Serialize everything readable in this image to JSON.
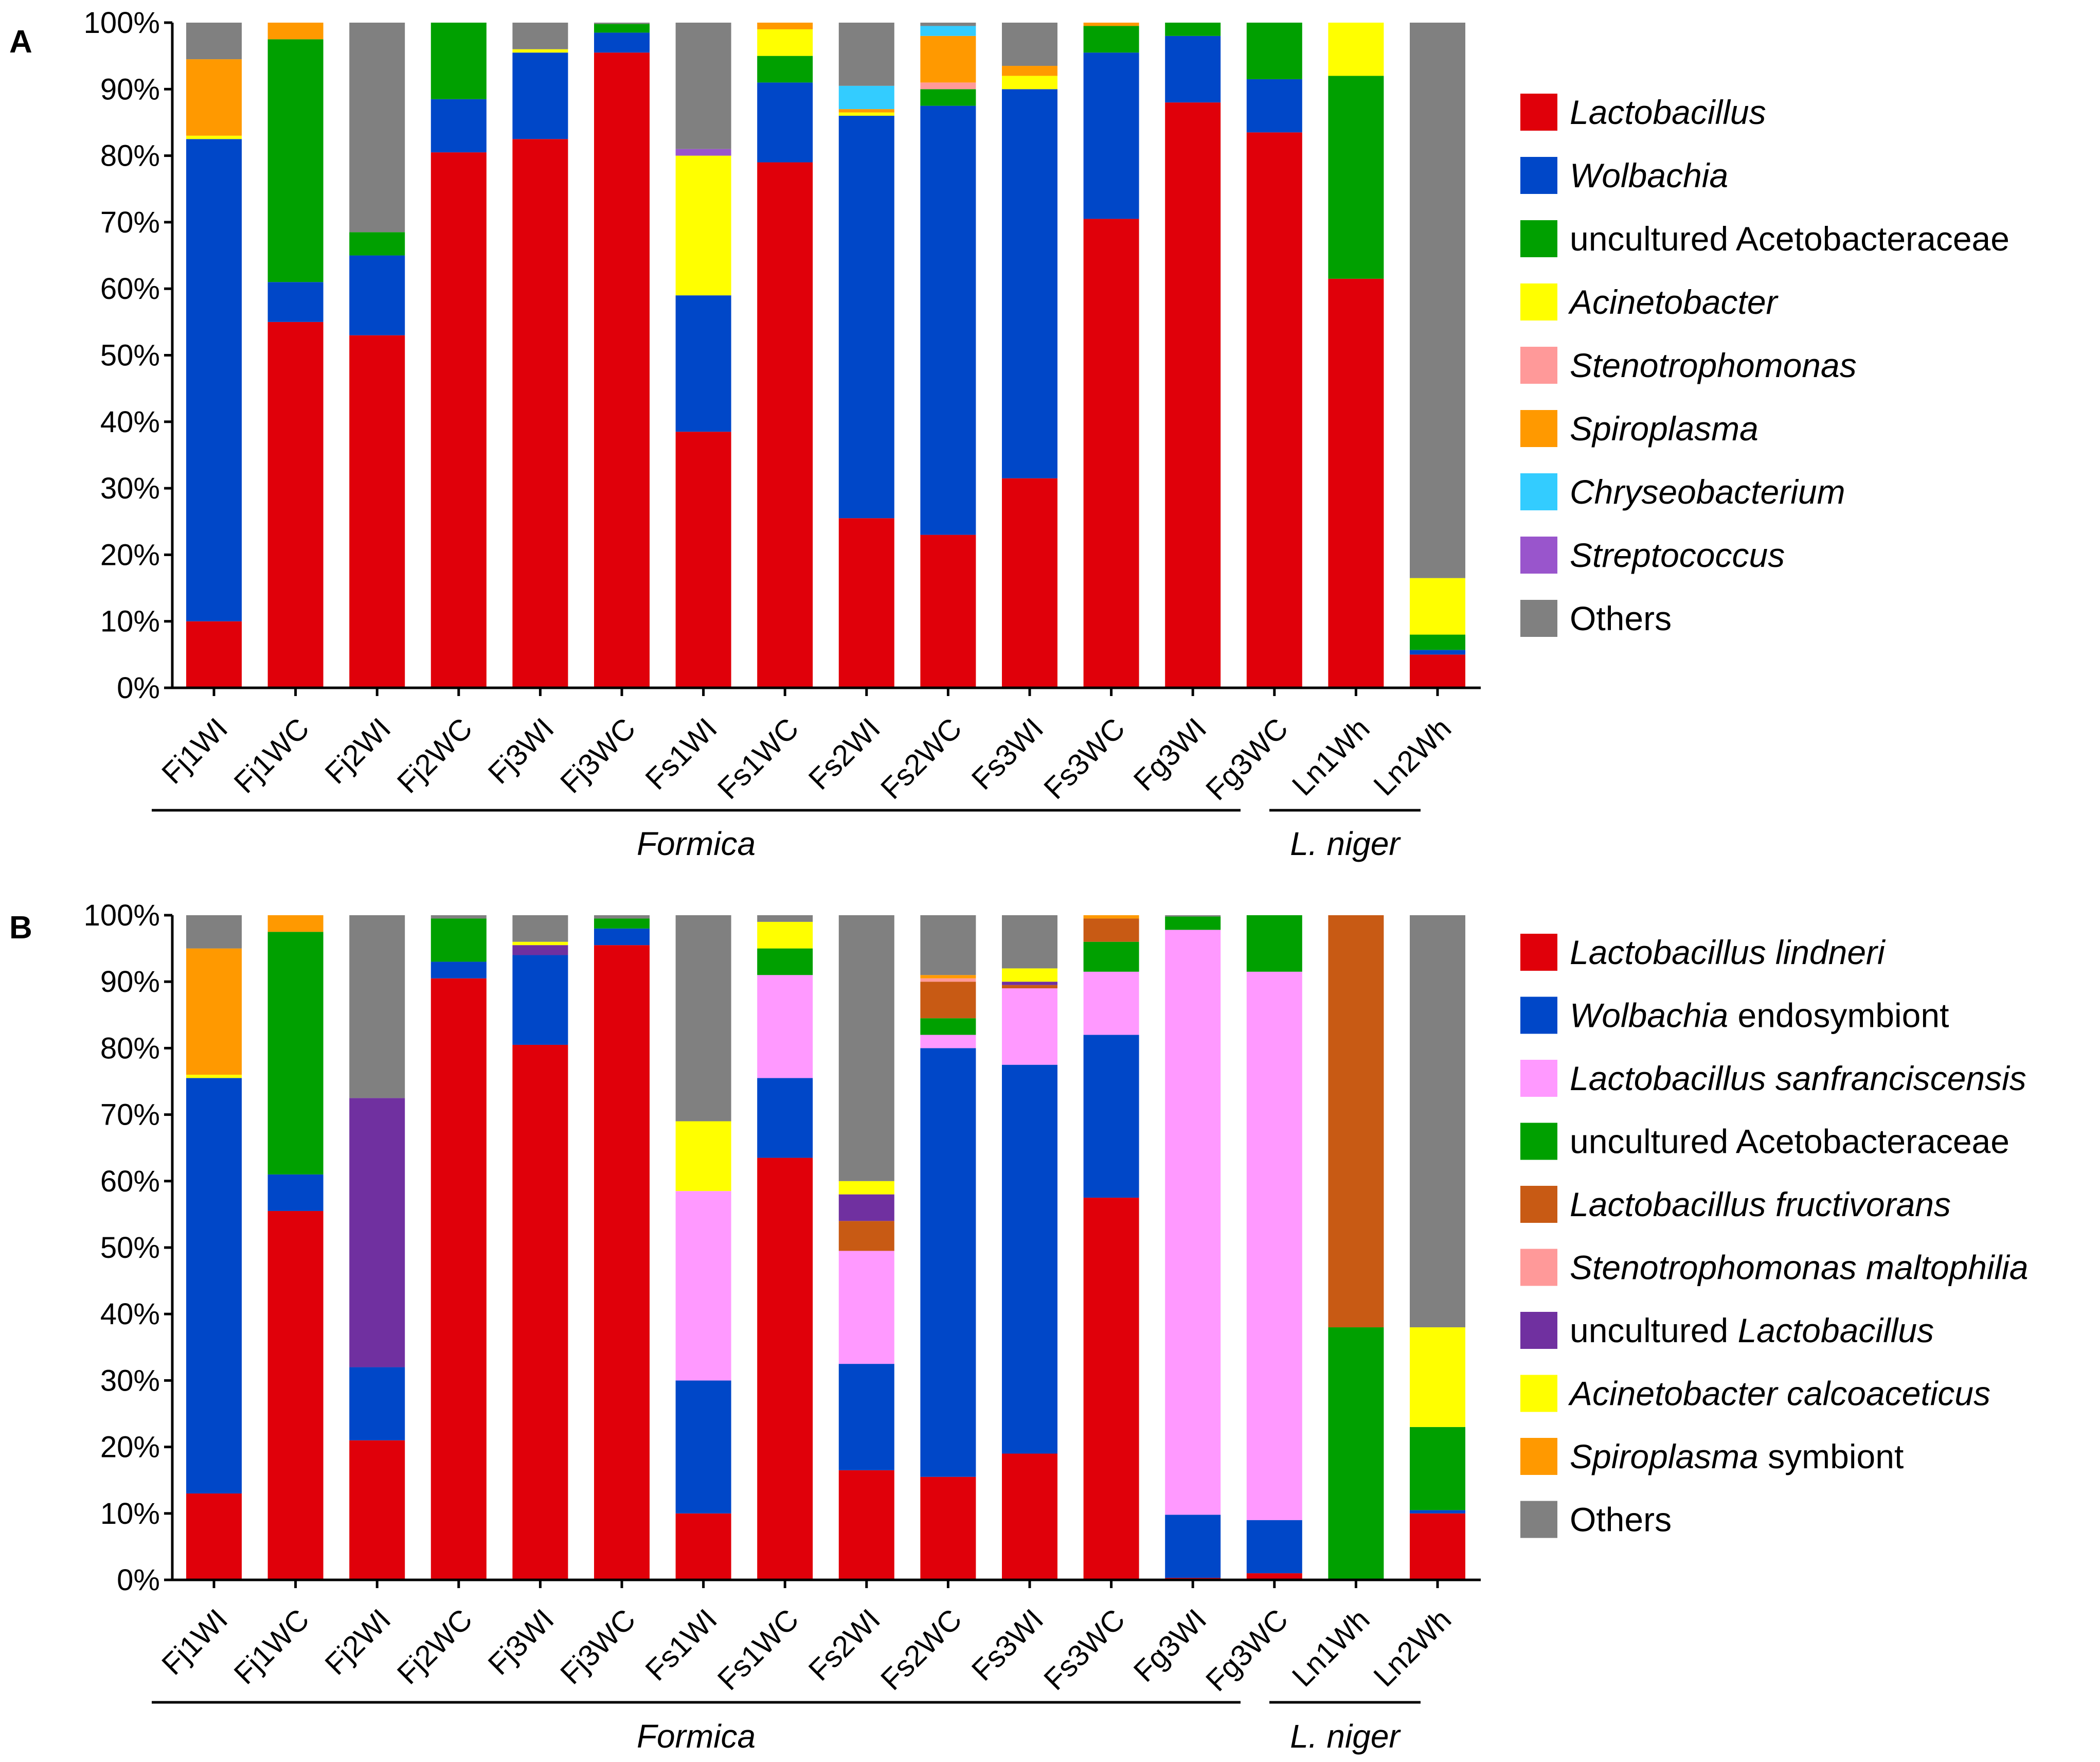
{
  "figure": {
    "panels": [
      "A",
      "B"
    ],
    "groups": [
      {
        "name": "Formica",
        "first": 0,
        "last": 13
      },
      {
        "name": "L. niger",
        "first": 14,
        "last": 15
      }
    ]
  },
  "chart_data": [
    {
      "type": "bar",
      "stacked": true,
      "panel": "A",
      "ylim": [
        0,
        100
      ],
      "yticks": [
        "0%",
        "10%",
        "20%",
        "30%",
        "40%",
        "50%",
        "60%",
        "70%",
        "80%",
        "90%",
        "100%"
      ],
      "categories": [
        "Fj1WI",
        "Fj1WC",
        "Fj2WI",
        "Fj2WC",
        "Fj3WI",
        "Fj3WC",
        "Fs1WI",
        "Fs1WC",
        "Fs2WI",
        "Fs2WC",
        "Fs3WI",
        "Fs3WC",
        "Fg3WI",
        "Fg3WC",
        "Ln1Wh",
        "Ln2Wh"
      ],
      "series": [
        {
          "name": "Lactobacillus",
          "legend": [
            {
              "t": "Lactobacillus",
              "i": true
            }
          ],
          "color": "#e0000a",
          "values": [
            10,
            55,
            53,
            80.5,
            82.5,
            95.5,
            38.5,
            79,
            25.5,
            23,
            31.5,
            70.5,
            88,
            83.5,
            61.5,
            5
          ]
        },
        {
          "name": "Wolbachia",
          "legend": [
            {
              "t": "Wolbachia",
              "i": true
            }
          ],
          "color": "#0047c8",
          "values": [
            72.5,
            6,
            12,
            8,
            13,
            3,
            20.5,
            12,
            60.5,
            64.5,
            58.5,
            25,
            10,
            8,
            0,
            0.7
          ]
        },
        {
          "name": "uncultured Acetobacteraceae",
          "legend": [
            {
              "t": "uncultured Acetobacteraceae",
              "i": false
            }
          ],
          "color": "#00a000",
          "values": [
            0,
            36.5,
            3.5,
            11.5,
            0,
            1.3,
            0,
            4,
            0,
            2.5,
            0,
            4,
            2,
            8.5,
            30.5,
            2.3
          ]
        },
        {
          "name": "Acinetobacter",
          "legend": [
            {
              "t": "Acinetobacter",
              "i": true
            }
          ],
          "color": "#ffff00",
          "values": [
            0.5,
            0,
            0,
            0,
            0.5,
            0,
            21,
            4,
            0.5,
            0,
            2,
            0,
            0,
            0,
            8,
            8.5
          ]
        },
        {
          "name": "Stenotrophomonas",
          "legend": [
            {
              "t": "Stenotrophomonas",
              "i": true
            }
          ],
          "color": "#ff9999",
          "values": [
            0,
            0,
            0,
            0,
            0,
            0,
            0,
            0,
            0,
            1,
            0,
            0,
            0,
            0,
            0,
            0
          ]
        },
        {
          "name": "Spiroplasma",
          "legend": [
            {
              "t": "Spiroplasma",
              "i": true
            }
          ],
          "color": "#ff9900",
          "values": [
            11.5,
            2.5,
            0,
            0,
            0,
            0,
            0,
            1,
            0.5,
            7,
            1.5,
            0.5,
            0,
            0,
            0,
            0
          ]
        },
        {
          "name": "Chryseobacterium",
          "legend": [
            {
              "t": "Chryseobacterium",
              "i": true
            }
          ],
          "color": "#33ccff",
          "values": [
            0,
            0,
            0,
            0,
            0,
            0,
            0,
            0,
            3.5,
            1.5,
            0,
            0,
            0,
            0,
            0,
            0
          ]
        },
        {
          "name": "Streptococcus",
          "legend": [
            {
              "t": "Streptococcus",
              "i": true
            }
          ],
          "color": "#9955cc",
          "values": [
            0,
            0,
            0,
            0,
            0,
            0,
            1,
            0,
            0,
            0,
            0,
            0,
            0,
            0,
            0,
            0
          ]
        },
        {
          "name": "Others",
          "legend": [
            {
              "t": "Others",
              "i": false
            }
          ],
          "color": "#808080",
          "values": [
            5.5,
            0,
            31.5,
            0,
            4,
            0.2,
            19,
            0,
            9.5,
            0.5,
            6.5,
            0,
            0,
            0,
            0,
            83.5
          ]
        }
      ]
    },
    {
      "type": "bar",
      "stacked": true,
      "panel": "B",
      "ylim": [
        0,
        100
      ],
      "yticks": [
        "0%",
        "10%",
        "20%",
        "30%",
        "40%",
        "50%",
        "60%",
        "70%",
        "80%",
        "90%",
        "100%"
      ],
      "categories": [
        "Fj1WI",
        "Fj1WC",
        "Fj2WI",
        "Fj2WC",
        "Fj3WI",
        "Fj3WC",
        "Fs1WI",
        "Fs1WC",
        "Fs2WI",
        "Fs2WC",
        "Fs3WI",
        "Fs3WC",
        "Fg3WI",
        "Fg3WC",
        "Ln1Wh",
        "Ln2Wh"
      ],
      "series": [
        {
          "name": "Lactobacillus lindneri",
          "legend": [
            {
              "t": "Lactobacillus lindneri",
              "i": true
            }
          ],
          "color": "#e0000a",
          "values": [
            13,
            55.5,
            21,
            90.5,
            80.5,
            95.5,
            10,
            63.5,
            16.5,
            15.5,
            19,
            57.5,
            0.3,
            1,
            0,
            10
          ]
        },
        {
          "name": "Wolbachia endosymbiont",
          "legend": [
            {
              "t": "Wolbachia",
              "i": true
            },
            {
              "t": " endosymbiont",
              "i": false
            }
          ],
          "color": "#0047c8",
          "values": [
            62.5,
            5.5,
            11,
            2.5,
            13.5,
            2.5,
            20,
            12,
            16,
            64.5,
            58.5,
            24.5,
            9.5,
            8,
            0,
            0.5
          ]
        },
        {
          "name": "Lactobacillus sanfranciscensis",
          "legend": [
            {
              "t": "Lactobacillus sanfranciscensis",
              "i": true
            }
          ],
          "color": "#ff99ff",
          "values": [
            0,
            0,
            0,
            0,
            0,
            0,
            28.5,
            15.5,
            17,
            2,
            11.5,
            9.5,
            88,
            82.5,
            0,
            0
          ]
        },
        {
          "name": "uncultured Acetobacteraceae",
          "legend": [
            {
              "t": "uncultured Acetobacteraceae",
              "i": false
            }
          ],
          "color": "#00a000",
          "values": [
            0,
            36.5,
            0,
            6.5,
            0,
            1.5,
            0,
            4,
            0,
            2.5,
            0,
            4.5,
            2,
            8.5,
            38,
            12.5
          ]
        },
        {
          "name": "Lactobacillus fructivorans",
          "legend": [
            {
              "t": "Lactobacillus fructivorans",
              "i": true
            }
          ],
          "color": "#c85a14",
          "values": [
            0,
            0,
            0,
            0,
            0,
            0,
            0,
            0,
            4.5,
            5.5,
            0.5,
            3.5,
            0,
            0,
            62,
            0
          ]
        },
        {
          "name": "Stenotrophomonas maltophilia",
          "legend": [
            {
              "t": "Stenotrophomonas maltophilia",
              "i": true
            }
          ],
          "color": "#ff9999",
          "values": [
            0,
            0,
            0,
            0,
            0,
            0,
            0,
            0,
            0,
            0.5,
            0,
            0,
            0,
            0,
            0,
            0
          ]
        },
        {
          "name": "uncultured Lactobacillus",
          "legend": [
            {
              "t": "uncultured ",
              "i": false
            },
            {
              "t": "Lactobacillus",
              "i": true
            }
          ],
          "color": "#7030a0",
          "values": [
            0,
            0,
            40.5,
            0,
            1.5,
            0,
            0,
            0,
            4,
            0,
            0.5,
            0,
            0,
            0,
            0,
            0
          ]
        },
        {
          "name": "Acinetobacter calcoaceticus",
          "legend": [
            {
              "t": "Acinetobacter calcoaceticus",
              "i": true
            }
          ],
          "color": "#ffff00",
          "values": [
            0.5,
            0,
            0,
            0,
            0.5,
            0,
            10.5,
            4,
            2,
            0,
            2,
            0,
            0,
            0,
            0,
            15
          ]
        },
        {
          "name": "Spiroplasma symbiont",
          "legend": [
            {
              "t": "Spiroplasma",
              "i": true
            },
            {
              "t": " symbiont",
              "i": false
            }
          ],
          "color": "#ff9900",
          "values": [
            19,
            2.5,
            0,
            0,
            0,
            0,
            0,
            0,
            0,
            0.5,
            0,
            0.5,
            0,
            0,
            0,
            0
          ]
        },
        {
          "name": "Others",
          "legend": [
            {
              "t": "Others",
              "i": false
            }
          ],
          "color": "#808080",
          "values": [
            5,
            0,
            27.5,
            0.5,
            4,
            0.5,
            31,
            1,
            40,
            9,
            8,
            0,
            0.2,
            0,
            0,
            62
          ]
        }
      ]
    }
  ]
}
